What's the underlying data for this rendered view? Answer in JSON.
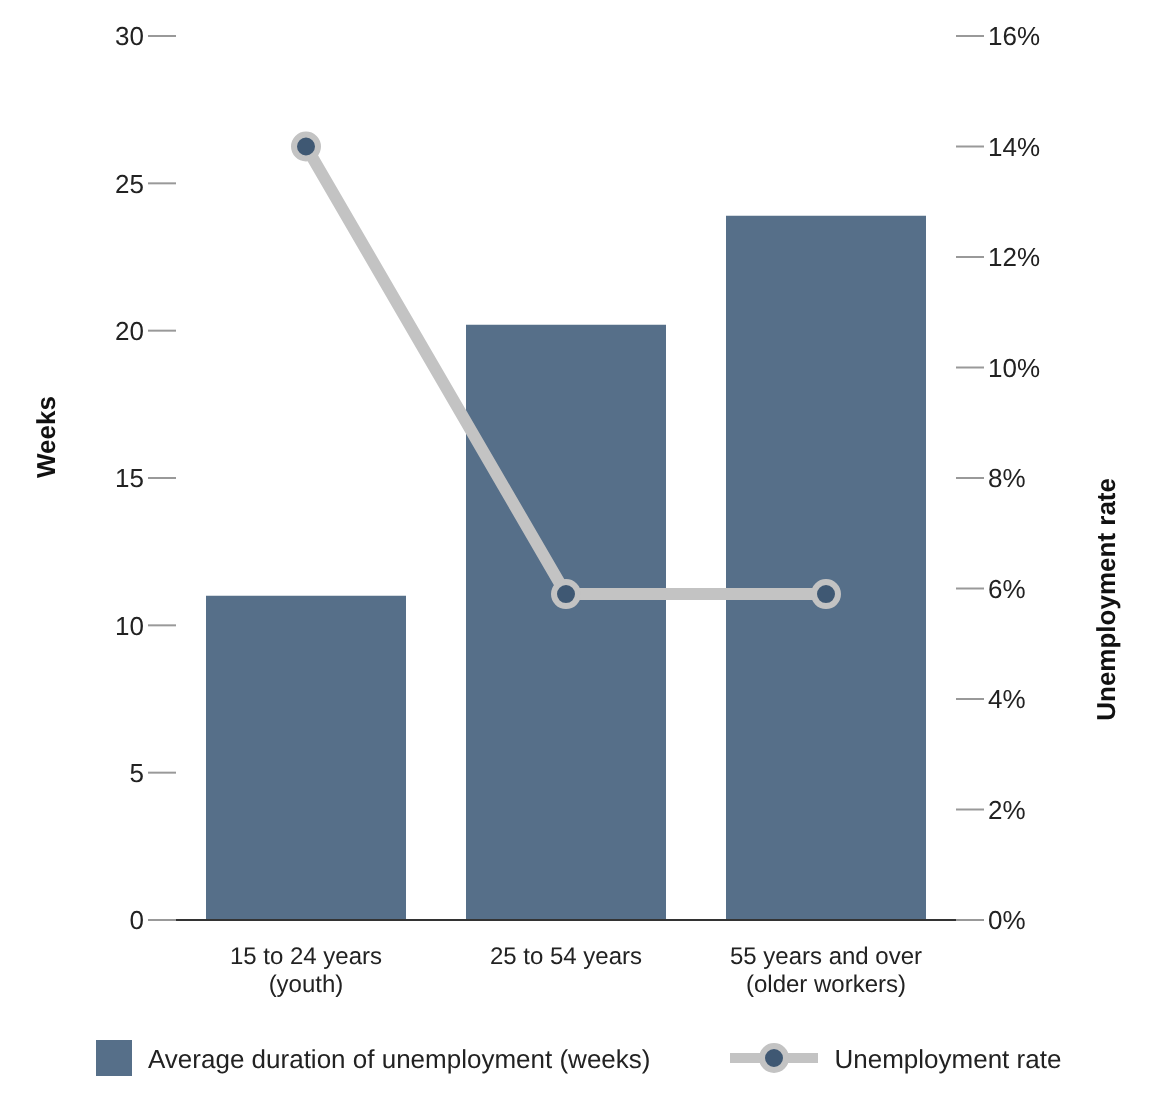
{
  "chart_data": {
    "type": "bar",
    "categories": [
      "15 to 24 years\n(youth)",
      "25 to 54 years",
      "55 years and over\n(older workers)"
    ],
    "ylabel": "Weeks",
    "y2label": "Unemployment rate",
    "ylim": [
      0,
      30
    ],
    "yticks": [
      0,
      5,
      10,
      15,
      20,
      25,
      30
    ],
    "y2lim": [
      0,
      16
    ],
    "y2ticks": [
      {
        "value": 0,
        "label": "0%"
      },
      {
        "value": 2,
        "label": "2%"
      },
      {
        "value": 4,
        "label": "4%"
      },
      {
        "value": 6,
        "label": "6%"
      },
      {
        "value": 8,
        "label": "8%"
      },
      {
        "value": 10,
        "label": "10%"
      },
      {
        "value": 12,
        "label": "12%"
      },
      {
        "value": 14,
        "label": "14%"
      },
      {
        "value": 16,
        "label": "16%"
      }
    ],
    "series": [
      {
        "name": "Average duration of unemployment (weeks)",
        "color": "#566f89",
        "values": [
          11,
          20.2,
          23.9
        ]
      },
      {
        "name": "Unemployment rate",
        "type": "line",
        "axis": "y2",
        "color": "#c3c3c3",
        "values": [
          14,
          5.9,
          5.9
        ]
      }
    ],
    "marker": "circle",
    "legend": "bottom"
  }
}
